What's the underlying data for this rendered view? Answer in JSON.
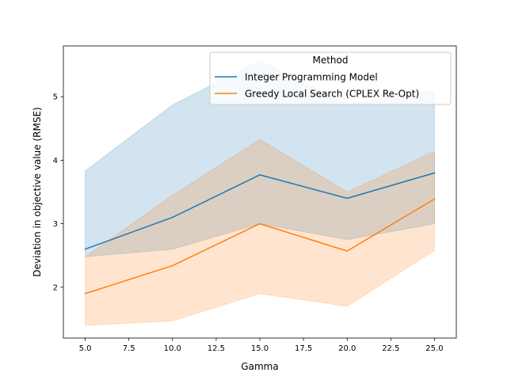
{
  "chart_data": {
    "type": "line",
    "xlabel": "Gamma",
    "ylabel": "Deviation in objective value (RMSE)",
    "x": [
      5,
      10,
      15,
      20,
      25
    ],
    "xlim": [
      3.75,
      26.25
    ],
    "ylim": [
      1.2,
      5.8
    ],
    "xticks": [
      "5.0",
      "7.5",
      "10.0",
      "12.5",
      "15.0",
      "17.5",
      "20.0",
      "22.5",
      "25.0"
    ],
    "yticks": [
      "2",
      "3",
      "4",
      "5"
    ],
    "legend": {
      "title": "Method",
      "placement": "top-right"
    },
    "series": [
      {
        "name": "Integer Programming Model",
        "color": "#1f77b4",
        "values": [
          2.6,
          3.1,
          3.77,
          3.4,
          3.8
        ],
        "lower": [
          2.48,
          2.6,
          3.0,
          2.75,
          3.0
        ],
        "upper": [
          3.83,
          4.87,
          5.57,
          4.88,
          5.1
        ]
      },
      {
        "name": "Greedy Local Search (CPLEX Re-Opt)",
        "color": "#ff7f0e",
        "values": [
          1.9,
          2.34,
          3.0,
          2.57,
          3.39
        ],
        "lower": [
          1.4,
          1.47,
          1.9,
          1.7,
          2.58
        ],
        "upper": [
          2.48,
          3.45,
          4.33,
          3.5,
          4.14
        ]
      }
    ]
  }
}
